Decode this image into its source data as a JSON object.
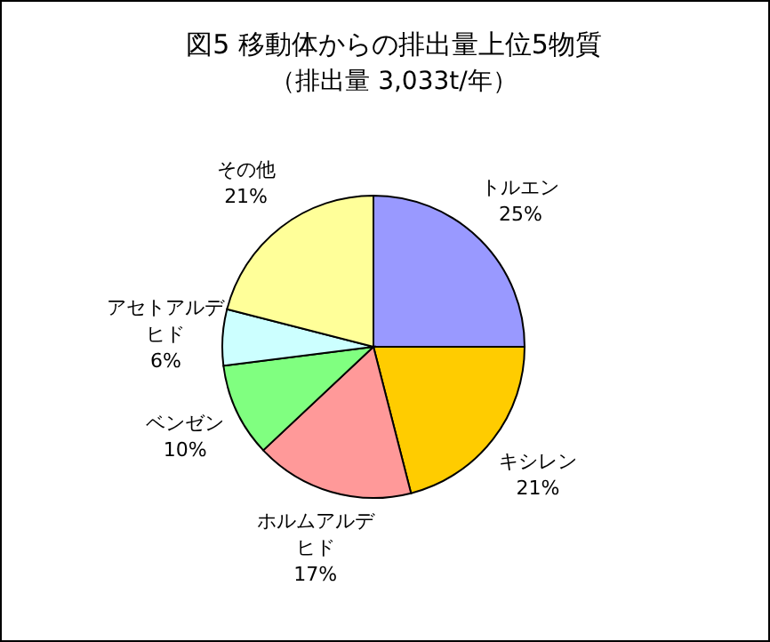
{
  "chart_data": {
    "type": "pie",
    "title": "図5  移動体からの排出量上位5物質",
    "subtitle": "（排出量 3,033t/年）",
    "categories": [
      "トルエン",
      "キシレン",
      "ホルムアルデヒド",
      "ベンゼン",
      "アセトアルデヒド",
      "その他"
    ],
    "values": [
      25,
      21,
      17,
      10,
      6,
      21
    ],
    "value_labels": [
      "25%",
      "21%",
      "17%",
      "10%",
      "6%",
      "21%"
    ],
    "colors": [
      "#9999ff",
      "#ffcc00",
      "#ff9999",
      "#80ff80",
      "#ccffff",
      "#ffff99"
    ]
  }
}
